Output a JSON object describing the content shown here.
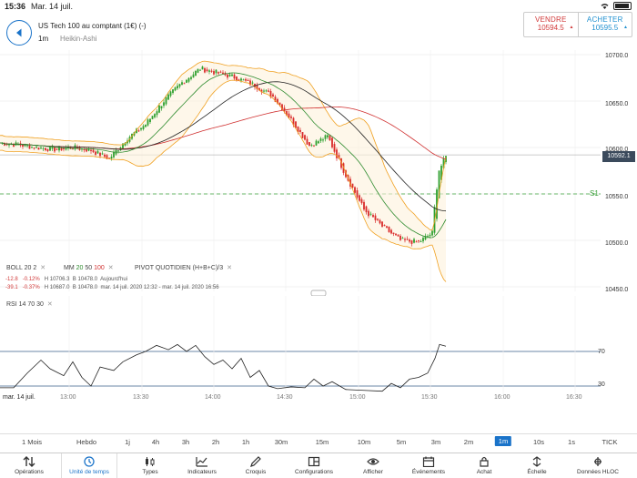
{
  "status": {
    "time": "15:36",
    "date": "Mar. 14 juil."
  },
  "header": {
    "title": "US Tech 100 au comptant (1€) (-)",
    "timeframe": "1m",
    "chart_type": "Heikin-Ashi"
  },
  "trade": {
    "sell_label": "VENDRE",
    "sell_price": "10594.5",
    "buy_label": "ACHETER",
    "buy_price": "10595.5"
  },
  "price_axis": {
    "labels": [
      "10700.0",
      "10650.0",
      "10600.0",
      "10550.0",
      "10500.0",
      "10450.0"
    ],
    "current_price": "10592.1",
    "pivot_label": "S1"
  },
  "indicators": {
    "boll": {
      "name": "BOLL",
      "p1": "20",
      "p2": "2"
    },
    "mm": {
      "name": "MM",
      "p1": "20",
      "p2": "50",
      "p3": "100"
    },
    "pivot": "PIVOT QUOTIDIEN (H+B+C)/3",
    "rsi": {
      "name": "RSI",
      "p1": "14",
      "p2": "70",
      "p3": "30"
    }
  },
  "ohlc_rows": [
    {
      "change": "-12.8",
      "pct": "-0.12%",
      "high": "H 10706.3",
      "low": "B 10478.0",
      "period": "Aujourd'hui"
    },
    {
      "change": "-39.1",
      "pct": "-0.37%",
      "high": "H 10687.0",
      "low": "B 10478.0",
      "period": "mar. 14 juil. 2020 12:32 - mar. 14 juil. 2020 16:56"
    }
  ],
  "rsi_axis": {
    "labels": [
      "70",
      "30"
    ]
  },
  "time_axis": {
    "date": "mar. 14 juil.",
    "labels": [
      "13:00",
      "13:30",
      "14:00",
      "14:30",
      "15:00",
      "15:30",
      "16:00",
      "16:30"
    ]
  },
  "timeframes": [
    "1 Mois",
    "Hebdo",
    "1j",
    "4h",
    "3h",
    "2h",
    "1h",
    "30m",
    "15m",
    "10m",
    "5m",
    "3m",
    "2m",
    "1m",
    "10s",
    "1s",
    "TICK"
  ],
  "active_timeframe": "1m",
  "toolbar": [
    "Opérations",
    "Unité de temps",
    "Types",
    "Indicateurs",
    "Croquis",
    "Configurations",
    "Afficher",
    "Événements",
    "Achat",
    "Échelle",
    "Données HLOC"
  ],
  "active_tool": "Unité de temps",
  "colors": {
    "accent": "#1a73c9",
    "up": "#2ea02e",
    "down": "#d92a2a",
    "boll": "#f0a020",
    "mm20": "#2e8b2e",
    "mm50": "#222222",
    "mm100": "#d03030",
    "pivot": "#3aa03a",
    "rsi_ref": "#3a5f8a"
  }
}
